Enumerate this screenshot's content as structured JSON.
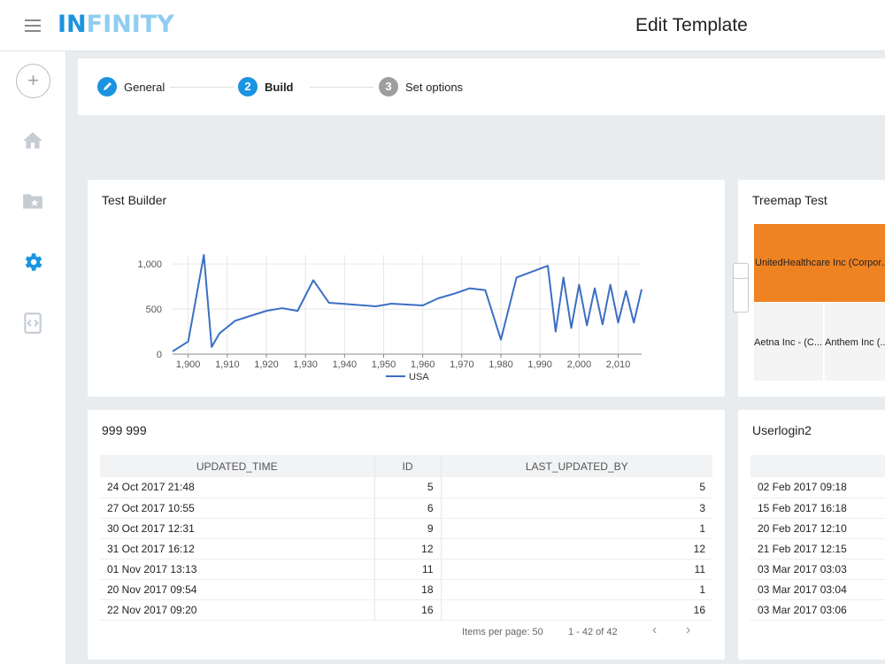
{
  "header": {
    "logo_in": "IN",
    "logo_rest": "FINITY",
    "title": "Edit Template"
  },
  "sidebar": {
    "add_label": "+",
    "items": [
      "home-icon",
      "folder-star-icon",
      "gear-icon",
      "code-icon"
    ],
    "active_color": "#1a94e0"
  },
  "stepper": {
    "steps": [
      {
        "number": "",
        "label": "General",
        "state": "done"
      },
      {
        "number": "2",
        "label": "Build",
        "state": "active"
      },
      {
        "number": "3",
        "label": "Set options",
        "state": "todo"
      }
    ],
    "accent": "#1a94e0",
    "inactive": "#9e9e9e"
  },
  "cards": {
    "test_builder": {
      "title": "Test Builder"
    },
    "treemap": {
      "title": "Treemap Test",
      "cells": [
        "UnitedHealthcare Inc (Corpor...",
        "Aetna Inc - (C...",
        "Anthem Inc (..."
      ],
      "color": "#ef8221"
    },
    "table_999": {
      "title": "999 999",
      "columns": [
        "UPDATED_TIME",
        "ID",
        "LAST_UPDATED_BY"
      ],
      "rows": [
        [
          "24 Oct 2017 21:48",
          "5",
          "5"
        ],
        [
          "27 Oct 2017 10:55",
          "6",
          "3"
        ],
        [
          "30 Oct 2017 12:31",
          "9",
          "1"
        ],
        [
          "31 Oct 2017 16:12",
          "12",
          "12"
        ],
        [
          "01 Nov 2017 13:13",
          "11",
          "11"
        ],
        [
          "20 Nov 2017 09:54",
          "18",
          "1"
        ],
        [
          "22 Nov 2017 09:20",
          "16",
          "16"
        ]
      ],
      "pager": {
        "items_per_page": "Items per page: 50",
        "range": "1 - 42 of 42"
      }
    },
    "userlogin2": {
      "title": "Userlogin2",
      "rows": [
        "02 Feb 2017 09:18",
        "15 Feb 2017 16:18",
        "20 Feb 2017 12:10",
        "21 Feb 2017 12:15",
        "03 Mar 2017 03:03",
        "03 Mar 2017 03:04",
        "03 Mar 2017 03:06"
      ]
    }
  },
  "chart_data": {
    "type": "line",
    "title": "",
    "xlabel": "",
    "ylabel": "",
    "xlim": [
      1896,
      2016
    ],
    "ylim": [
      0,
      1100
    ],
    "x_ticks": [
      1900,
      1910,
      1920,
      1930,
      1940,
      1950,
      1960,
      1970,
      1980,
      1990,
      2000,
      2010
    ],
    "x_tick_labels": [
      "1,900",
      "1,910",
      "1,920",
      "1,930",
      "1,940",
      "1,950",
      "1,960",
      "1,970",
      "1,980",
      "1,990",
      "2,000",
      "2,010"
    ],
    "y_ticks": [
      0,
      500,
      1000
    ],
    "y_tick_labels": [
      "0",
      "500",
      "1,000"
    ],
    "legend": "bottom-center",
    "grid": true,
    "color": "#3b6fc4",
    "series": [
      {
        "name": "USA",
        "x": [
          1896,
          1900,
          1904,
          1906,
          1908,
          1912,
          1920,
          1924,
          1928,
          1932,
          1936,
          1948,
          1952,
          1956,
          1960,
          1964,
          1968,
          1972,
          1976,
          1980,
          1984,
          1992,
          1994,
          1996,
          1998,
          2000,
          2002,
          2004,
          2006,
          2008,
          2010,
          2012,
          2014,
          2016
        ],
        "y": [
          30,
          140,
          1100,
          80,
          230,
          370,
          480,
          510,
          480,
          820,
          570,
          530,
          560,
          550,
          540,
          620,
          670,
          730,
          710,
          160,
          850,
          980,
          250,
          850,
          290,
          770,
          320,
          730,
          330,
          770,
          350,
          700,
          350,
          720
        ]
      }
    ]
  }
}
